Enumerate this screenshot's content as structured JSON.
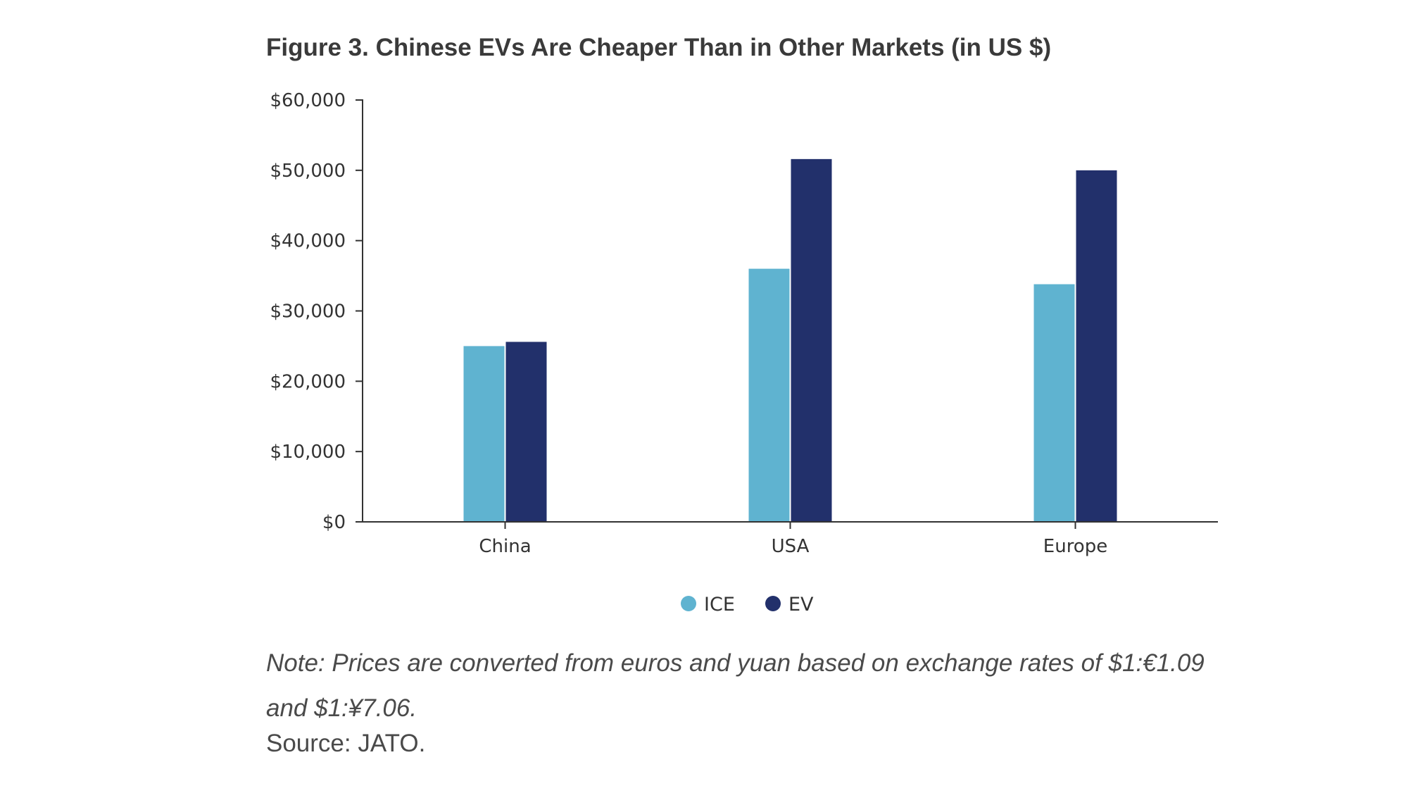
{
  "title": "Figure 3. Chinese EVs Are Cheaper Than in Other Markets (in US $)",
  "note": "Note: Prices are converted from euros and yuan based on exchange rates of $1:€1.09 and $1:¥7.06.",
  "source": "Source: JATO.",
  "colors": {
    "ICE": "#5fb3d0",
    "EV": "#22306b",
    "axis": "#333333"
  },
  "chart_data": {
    "type": "bar",
    "categories": [
      "China",
      "USA",
      "Europe"
    ],
    "series": [
      {
        "name": "ICE",
        "values": [
          25000,
          36000,
          33800
        ]
      },
      {
        "name": "EV",
        "values": [
          25600,
          51600,
          50000
        ]
      }
    ],
    "yticks": [
      "$0",
      "$10,000",
      "$20,000",
      "$30,000",
      "$40,000",
      "$50,000",
      "$60,000"
    ],
    "ylim": [
      0,
      60000
    ],
    "xlabel": "",
    "ylabel": "",
    "grid": false,
    "legend": "bottom-center"
  }
}
